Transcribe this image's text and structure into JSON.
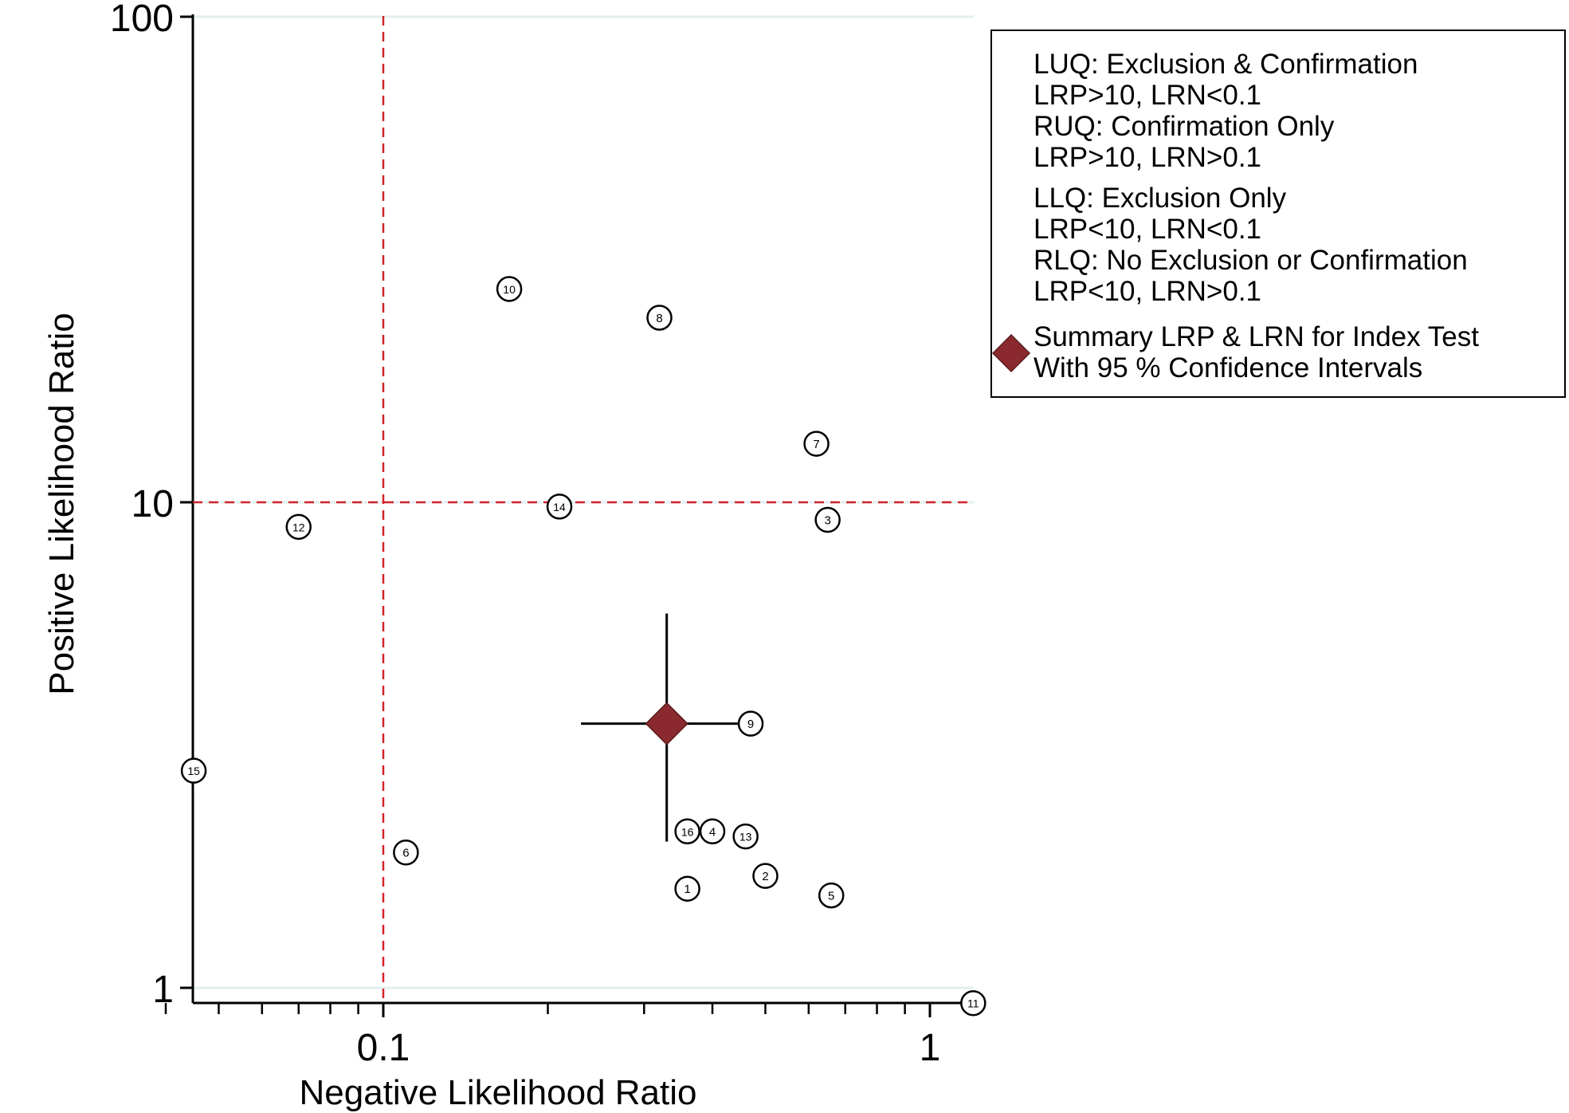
{
  "chart_data": {
    "type": "scatter",
    "xlabel": "Negative Likelihood Ratio",
    "ylabel": "Positive Likelihood Ratio",
    "xscale": "log",
    "yscale": "log",
    "xlim": [
      0.043,
      1.25
    ],
    "ylim": [
      0.95,
      100
    ],
    "x_ticks": [
      {
        "value": 0.1,
        "label": "0.1"
      },
      {
        "value": 1,
        "label": "1"
      }
    ],
    "y_ticks": [
      {
        "value": 1,
        "label": "1"
      },
      {
        "value": 10,
        "label": "10"
      },
      {
        "value": 100,
        "label": "100"
      }
    ],
    "grid": "horizontal major lines",
    "reference_lines": {
      "x": 0.1,
      "y": 10,
      "style": "dashed",
      "color": "#d2232a"
    },
    "studies": [
      {
        "label": "1",
        "x": 0.36,
        "y": 1.6
      },
      {
        "label": "2",
        "x": 0.5,
        "y": 1.7
      },
      {
        "label": "3",
        "x": 0.65,
        "y": 9.2
      },
      {
        "label": "4",
        "x": 0.4,
        "y": 2.1
      },
      {
        "label": "5",
        "x": 0.66,
        "y": 1.55
      },
      {
        "label": "6",
        "x": 0.11,
        "y": 1.9
      },
      {
        "label": "7",
        "x": 0.62,
        "y": 13.2
      },
      {
        "label": "8",
        "x": 0.32,
        "y": 24
      },
      {
        "label": "9",
        "x": 0.47,
        "y": 3.5
      },
      {
        "label": "10",
        "x": 0.17,
        "y": 27.5
      },
      {
        "label": "11",
        "x": 1.2,
        "y": 0.93
      },
      {
        "label": "12",
        "x": 0.07,
        "y": 8.9
      },
      {
        "label": "13",
        "x": 0.46,
        "y": 2.05
      },
      {
        "label": "14",
        "x": 0.21,
        "y": 9.8
      },
      {
        "label": "15",
        "x": 0.045,
        "y": 2.8
      },
      {
        "label": "16",
        "x": 0.36,
        "y": 2.1
      }
    ],
    "summary": {
      "x": 0.33,
      "y": 3.5,
      "x_ci": [
        0.23,
        0.47
      ],
      "y_ci": [
        2.0,
        5.9
      ],
      "color": "#8b2a2e"
    },
    "legend": {
      "placement": "top-right",
      "lines": [
        "LUQ: Exclusion & Confirmation",
        "LRP>10, LRN<0.1",
        "RUQ: Confirmation Only",
        "LRP>10, LRN>0.1",
        "LLQ: Exclusion Only",
        "LRP<10, LRN<0.1",
        "RLQ: No Exclusion or Confirmation",
        "LRP<10, LRN>0.1"
      ],
      "summary_lines": [
        "Summary LRP & LRN for Index Test",
        "With 95 % Confidence Intervals"
      ]
    }
  }
}
